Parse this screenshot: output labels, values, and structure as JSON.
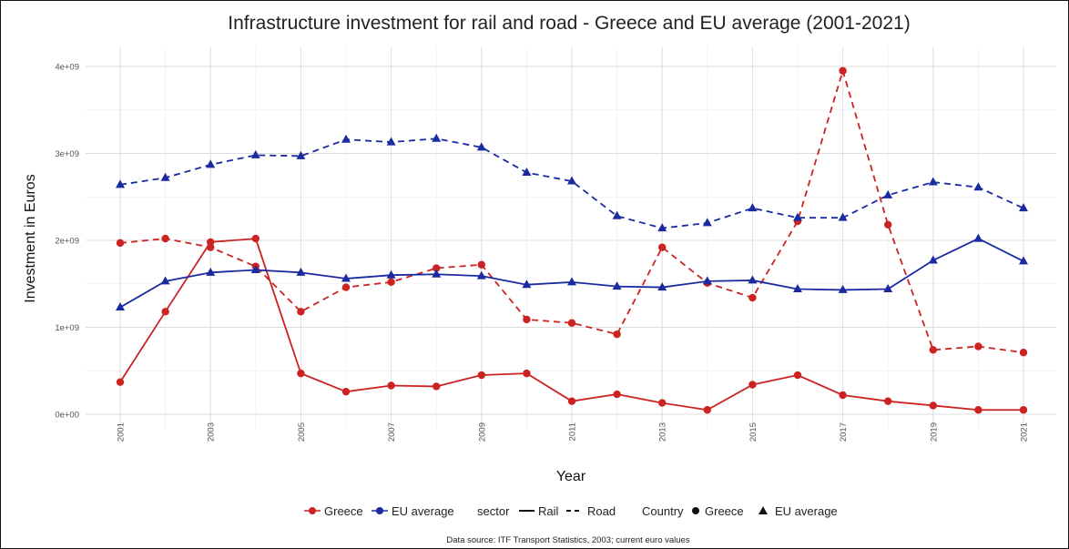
{
  "chart_data": {
    "type": "line",
    "title": "Infrastructure investment for rail and road - Greece and EU average (2001-2021)",
    "xlabel": "Year",
    "ylabel": "Investment in Euros",
    "caption": "Data source: ITF Transport Statistics, 2003; current euro values",
    "x": [
      2001,
      2002,
      2003,
      2004,
      2005,
      2006,
      2007,
      2008,
      2009,
      2010,
      2011,
      2012,
      2013,
      2014,
      2015,
      2016,
      2017,
      2018,
      2019,
      2020,
      2021
    ],
    "x_ticks": [
      "2001",
      "2003",
      "2005",
      "2007",
      "2009",
      "2011",
      "2013",
      "2015",
      "2017",
      "2019",
      "2021"
    ],
    "y_ticks": [
      "0e+00",
      "1e+09",
      "2e+09",
      "3e+09",
      "4e+09"
    ],
    "ylim": [
      0,
      4000000000
    ],
    "grid": true,
    "legend_position": "bottom",
    "series": [
      {
        "country": "Greece",
        "sector": "Rail",
        "color": "#cc2222",
        "linetype": "solid",
        "marker": "circle",
        "values": [
          370000000,
          1180000000,
          1980000000,
          2020000000,
          470000000,
          260000000,
          330000000,
          320000000,
          450000000,
          470000000,
          150000000,
          230000000,
          130000000,
          50000000,
          340000000,
          450000000,
          220000000,
          150000000,
          100000000,
          50000000,
          50000000
        ]
      },
      {
        "country": "Greece",
        "sector": "Road",
        "color": "#cc2222",
        "linetype": "dashed",
        "marker": "circle",
        "values": [
          1970000000,
          2020000000,
          1920000000,
          1700000000,
          1180000000,
          1460000000,
          1520000000,
          1680000000,
          1720000000,
          1090000000,
          1050000000,
          920000000,
          1920000000,
          1510000000,
          1340000000,
          2220000000,
          3950000000,
          2180000000,
          740000000,
          780000000,
          710000000
        ]
      },
      {
        "country": "EU average",
        "sector": "Rail",
        "color": "#1a2aa0",
        "linetype": "solid",
        "marker": "triangle",
        "values": [
          1230000000,
          1530000000,
          1630000000,
          1660000000,
          1630000000,
          1560000000,
          1600000000,
          1610000000,
          1590000000,
          1490000000,
          1520000000,
          1470000000,
          1460000000,
          1530000000,
          1540000000,
          1440000000,
          1430000000,
          1440000000,
          1770000000,
          2020000000,
          1760000000
        ]
      },
      {
        "country": "EU average",
        "sector": "Road",
        "color": "#1a2aa0",
        "linetype": "dashed",
        "marker": "triangle",
        "values": [
          2640000000,
          2720000000,
          2870000000,
          2980000000,
          2970000000,
          3160000000,
          3130000000,
          3170000000,
          3070000000,
          2780000000,
          2680000000,
          2280000000,
          2140000000,
          2200000000,
          2370000000,
          2260000000,
          2260000000,
          2520000000,
          2670000000,
          2610000000,
          2370000000
        ]
      }
    ],
    "legend": {
      "colour_items": [
        {
          "label": "Greece",
          "color": "#cc2222"
        },
        {
          "label": "EU average",
          "color": "#1a2aa0"
        }
      ],
      "sector_title": "sector",
      "sector_items": [
        {
          "label": "Rail",
          "linetype": "solid"
        },
        {
          "label": "Road",
          "linetype": "dashed"
        }
      ],
      "country_title": "Country",
      "country_items": [
        {
          "label": "Greece",
          "marker": "circle"
        },
        {
          "label": "EU average",
          "marker": "triangle"
        }
      ]
    }
  }
}
